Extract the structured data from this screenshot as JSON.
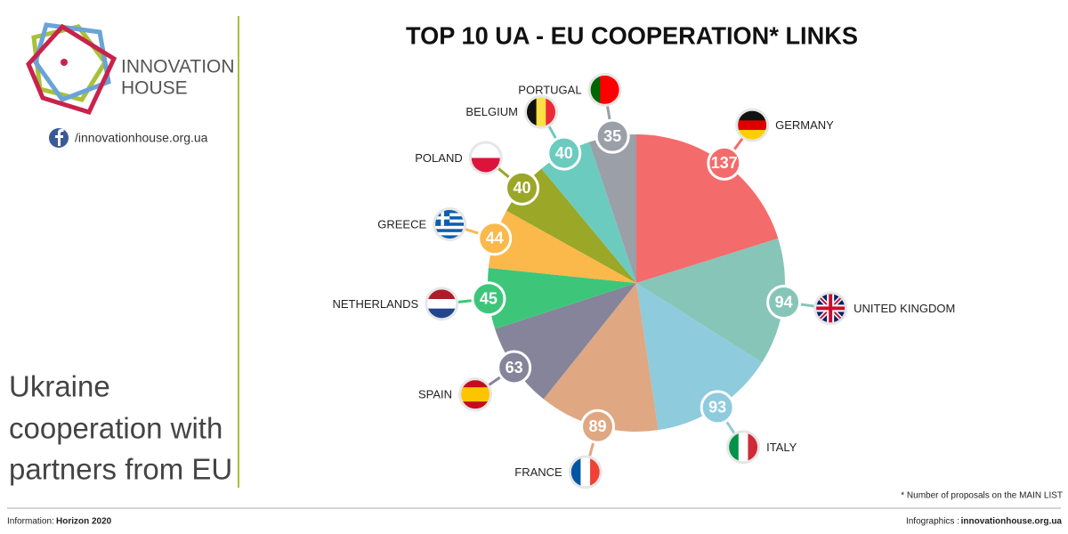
{
  "header": {
    "logo": [
      "INNOVATION",
      "HOUSE"
    ],
    "social": "/innovationhouse.org.ua"
  },
  "side_text": [
    "Ukraine",
    "cooperation with",
    "partners from EU"
  ],
  "chart_data": {
    "type": "pie",
    "title": "TOP 10 UA - EU COOPERATION* LINKS",
    "categories": [
      "GERMANY",
      "UNITED KINGDOM",
      "ITALY",
      "FRANCE",
      "SPAIN",
      "NETHERLANDS",
      "GREECE",
      "POLAND",
      "BELGIUM",
      "PORTUGAL"
    ],
    "values": [
      137,
      94,
      93,
      89,
      63,
      45,
      44,
      40,
      40,
      35
    ],
    "colors": [
      "#f46b6b",
      "#86c5b8",
      "#8ecbdc",
      "#dfa882",
      "#85849a",
      "#3dc67a",
      "#fbb84b",
      "#9aa727",
      "#6ccbbf",
      "#9a9fa8"
    ],
    "footnote": "* Number of proposals on the MAIN LIST"
  },
  "footer": {
    "source_label": "Information:",
    "source": "Horizon 2020",
    "credit_label": "Infographics :",
    "credit": "innovationhouse.org.ua"
  }
}
